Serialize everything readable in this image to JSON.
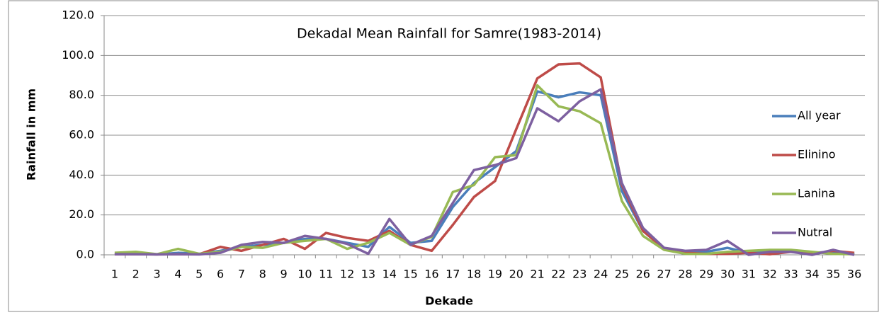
{
  "chart_data": {
    "type": "line",
    "title": "Dekadal Mean Rainfall for Samre(1983-2014)",
    "x_label": "Dekade",
    "y_label": "Rainfall in mm",
    "categories": [
      "1",
      "2",
      "3",
      "4",
      "5",
      "6",
      "7",
      "8",
      "9",
      "10",
      "11",
      "12",
      "13",
      "14",
      "15",
      "16",
      "17",
      "18",
      "19",
      "20",
      "21",
      "22",
      "23",
      "24",
      "25",
      "26",
      "27",
      "28",
      "29",
      "30",
      "31",
      "32",
      "33",
      "34",
      "35",
      "36"
    ],
    "series": [
      {
        "name": "All year",
        "color": "#4a7ebb",
        "values": [
          0.5,
          0.5,
          0.2,
          1,
          0.5,
          2,
          4,
          5,
          6,
          8,
          8,
          6,
          4,
          14,
          6,
          7,
          24,
          36,
          44,
          52,
          82,
          79,
          81.5,
          80,
          32,
          12,
          3,
          1.5,
          1.5,
          3.5,
          1,
          2,
          2,
          1,
          1.5,
          0.5
        ]
      },
      {
        "name": "Elinino",
        "color": "#be4b48",
        "values": [
          0.3,
          0.3,
          0.2,
          0.3,
          0.3,
          4,
          2,
          5,
          8,
          3,
          11,
          8.5,
          7,
          12,
          5,
          2,
          15,
          29,
          37,
          63,
          88.5,
          95.5,
          96,
          89,
          35,
          12,
          3,
          1,
          0.5,
          0.5,
          1,
          0.3,
          1.5,
          0.5,
          2,
          1
        ]
      },
      {
        "name": "Lanina",
        "color": "#98b954",
        "values": [
          1,
          1.5,
          0.3,
          3,
          0.5,
          1.5,
          4,
          3.5,
          6,
          7,
          8,
          3,
          6,
          11,
          5,
          9,
          31.5,
          35,
          49,
          50,
          85,
          74.5,
          72,
          66,
          27,
          9.5,
          2.5,
          0.5,
          0.5,
          1.5,
          2,
          2.5,
          2.5,
          1.5,
          0.5,
          0.3
        ]
      },
      {
        "name": "Nutral",
        "color": "#7d60a0",
        "values": [
          0.3,
          0.3,
          0.2,
          0.3,
          0.2,
          1,
          5,
          6.5,
          6,
          9.5,
          8,
          5.5,
          0.5,
          18,
          5,
          9.5,
          26,
          42.5,
          45,
          48.5,
          73.5,
          67,
          77,
          83,
          36,
          13.5,
          3.5,
          2,
          2.5,
          7,
          0,
          1.5,
          1.5,
          0,
          2.5,
          0
        ]
      }
    ],
    "ylim": [
      0,
      120
    ],
    "yticks": [
      {
        "value": 0,
        "label": "0.0"
      },
      {
        "value": 20,
        "label": "20.0"
      },
      {
        "value": 40,
        "label": "40.0"
      },
      {
        "value": 60,
        "label": "60.0"
      },
      {
        "value": 80,
        "label": "80.0"
      },
      {
        "value": 100,
        "label": "100.0"
      },
      {
        "value": 120,
        "label": "120.0"
      }
    ],
    "grid": true,
    "legend": "right"
  }
}
